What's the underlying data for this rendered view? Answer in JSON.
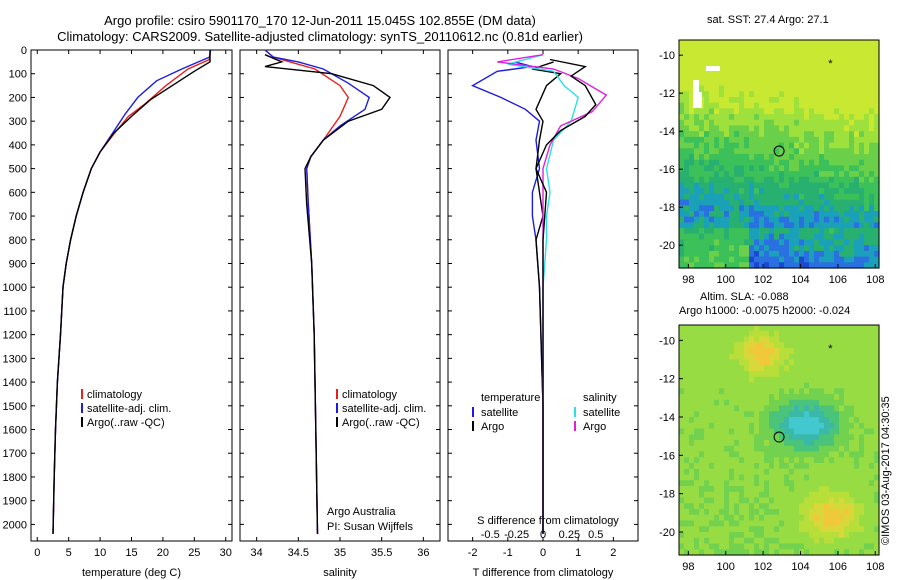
{
  "header": {
    "line1": "Argo profile: csiro 5901170_170 12-Jun-2011 15.045S 102.855E (DM data)",
    "line2": "Climatology: CARS2009. Satellite-adjusted climatology: synTS_20110612.nc (0.81d earlier)"
  },
  "stamp": "©IMOS 03-Aug-2017 04:30:35",
  "colors": {
    "climatology": "#e8201c",
    "satellite": "#1c1ce0",
    "argo": "#000000",
    "sat_salinity": "#29e0e6",
    "argo_salinity": "#e020e0"
  },
  "chart_data": [
    {
      "type": "line",
      "name": "temperature",
      "xlabel": "temperature (deg C)",
      "xlim": [
        -1,
        31
      ],
      "ylim": [
        2070,
        0
      ],
      "xticks": [
        0,
        5,
        10,
        15,
        20,
        25,
        30
      ],
      "yticks": [
        0,
        100,
        200,
        300,
        400,
        500,
        600,
        700,
        800,
        900,
        1000,
        1100,
        1200,
        1300,
        1400,
        1500,
        1600,
        1700,
        1800,
        1900,
        2000
      ],
      "legend": [
        "climatology",
        "satellite-adj. clim.",
        "Argo(..raw -QC)"
      ],
      "series": [
        {
          "name": "climatology",
          "color": "#e8201c",
          "points": [
            [
              27.6,
              0
            ],
            [
              27.4,
              40
            ],
            [
              24,
              80
            ],
            [
              20.5,
              150
            ],
            [
              17,
              230
            ],
            [
              14.5,
              280
            ],
            [
              12,
              360
            ],
            [
              10,
              430
            ],
            [
              8.6,
              500
            ],
            [
              7.3,
              600
            ],
            [
              6.2,
              700
            ],
            [
              5.3,
              800
            ],
            [
              4.6,
              900
            ],
            [
              4.1,
              1000
            ],
            [
              3.7,
              1200
            ],
            [
              3.2,
              1400
            ],
            [
              2.9,
              1600
            ],
            [
              2.7,
              1800
            ],
            [
              2.5,
              2040
            ]
          ]
        },
        {
          "name": "satellite-adj. clim.",
          "color": "#1c1ce0",
          "points": [
            [
              27.6,
              0
            ],
            [
              27.4,
              30
            ],
            [
              23,
              80
            ],
            [
              19,
              130
            ],
            [
              16,
              200
            ],
            [
              14,
              270
            ],
            [
              12,
              350
            ],
            [
              10,
              430
            ],
            [
              8.6,
              500
            ],
            [
              7.3,
              600
            ],
            [
              6.2,
              700
            ],
            [
              5.3,
              800
            ],
            [
              4.6,
              900
            ],
            [
              4.1,
              1000
            ],
            [
              3.7,
              1200
            ],
            [
              3.2,
              1400
            ],
            [
              2.9,
              1600
            ],
            [
              2.7,
              1800
            ],
            [
              2.5,
              2040
            ]
          ]
        },
        {
          "name": "Argo(..raw -QC)",
          "color": "#000000",
          "points": [
            [
              27.5,
              0
            ],
            [
              27.5,
              50
            ],
            [
              25,
              90
            ],
            [
              21.5,
              150
            ],
            [
              18,
              210
            ],
            [
              15,
              280
            ],
            [
              12.2,
              350
            ],
            [
              10,
              430
            ],
            [
              8.6,
              500
            ],
            [
              7.3,
              600
            ],
            [
              6.2,
              700
            ],
            [
              5.3,
              800
            ],
            [
              4.6,
              900
            ],
            [
              4.1,
              1000
            ],
            [
              3.7,
              1200
            ],
            [
              3.2,
              1400
            ],
            [
              2.9,
              1600
            ],
            [
              2.7,
              1800
            ],
            [
              2.5,
              2040
            ]
          ]
        }
      ]
    },
    {
      "type": "line",
      "name": "salinity",
      "xlabel": "salinity",
      "xlim": [
        33.8,
        36.2
      ],
      "ylim": [
        2070,
        0
      ],
      "xticks": [
        34,
        34.5,
        35,
        35.5,
        36
      ],
      "legend": [
        "climatology",
        "satellite-adj. clim.",
        "Argo(..raw -QC)"
      ],
      "annotation": [
        "Argo Australia",
        "PI: Susan Wijffels"
      ],
      "series": [
        {
          "name": "climatology",
          "color": "#e8201c",
          "points": [
            [
              34.1,
              0
            ],
            [
              34.2,
              30
            ],
            [
              34.4,
              50
            ],
            [
              34.7,
              80
            ],
            [
              35.0,
              150
            ],
            [
              35.1,
              200
            ],
            [
              35.0,
              280
            ],
            [
              34.8,
              380
            ],
            [
              34.65,
              450
            ],
            [
              34.6,
              500
            ],
            [
              34.62,
              650
            ],
            [
              34.66,
              900
            ],
            [
              34.69,
              1200
            ],
            [
              34.71,
              1600
            ],
            [
              34.73,
              2040
            ]
          ]
        },
        {
          "name": "satellite-adj. clim.",
          "color": "#1c1ce0",
          "points": [
            [
              34.1,
              0
            ],
            [
              34.2,
              30
            ],
            [
              34.5,
              50
            ],
            [
              34.8,
              80
            ],
            [
              35.1,
              140
            ],
            [
              35.35,
              200
            ],
            [
              35.3,
              250
            ],
            [
              35.0,
              320
            ],
            [
              34.8,
              380
            ],
            [
              34.65,
              450
            ],
            [
              34.6,
              500
            ],
            [
              34.62,
              650
            ],
            [
              34.66,
              900
            ],
            [
              34.69,
              1200
            ],
            [
              34.71,
              1600
            ],
            [
              34.73,
              2040
            ]
          ]
        },
        {
          "name": "Argo(..raw -QC)",
          "color": "#000000",
          "points": [
            [
              34.1,
              20
            ],
            [
              34.3,
              50
            ],
            [
              34.1,
              70
            ],
            [
              34.9,
              100
            ],
            [
              35.4,
              150
            ],
            [
              35.6,
              200
            ],
            [
              35.5,
              250
            ],
            [
              35.1,
              300
            ],
            [
              34.8,
              380
            ],
            [
              34.65,
              450
            ],
            [
              34.58,
              500
            ],
            [
              34.6,
              650
            ],
            [
              34.66,
              900
            ],
            [
              34.69,
              1200
            ],
            [
              34.71,
              1600
            ],
            [
              34.73,
              2040
            ]
          ]
        }
      ]
    },
    {
      "type": "line",
      "name": "difference",
      "xlabel": "T difference from climatology",
      "xlabel_top": "S difference from climatology",
      "xlim": [
        -2.7,
        2.7
      ],
      "ylim": [
        2070,
        0
      ],
      "xticks": [
        -2,
        -1,
        0,
        1,
        2
      ],
      "xticklabels_top": [
        {
          "x": -1.5,
          "label": "-0.5"
        },
        {
          "x": -0.75,
          "label": "-0.25"
        },
        {
          "x": 0,
          "label": "0"
        },
        {
          "x": 0.75,
          "label": "0.25"
        },
        {
          "x": 1.5,
          "label": "0.5"
        }
      ],
      "legend_heads": [
        "temperature",
        "salinity"
      ],
      "legend": [
        "satellite",
        "Argo",
        "satellite",
        "Argo"
      ],
      "series": [
        {
          "name": "temperature satellite",
          "color": "#1c1ce0",
          "points": [
            [
              -0.8,
              50
            ],
            [
              -0.3,
              70
            ],
            [
              -1.3,
              90
            ],
            [
              -2.0,
              150
            ],
            [
              -1.2,
              200
            ],
            [
              -0.5,
              250
            ],
            [
              -0.1,
              300
            ],
            [
              -0.2,
              380
            ],
            [
              -0.1,
              500
            ],
            [
              -0.3,
              600
            ],
            [
              -0.3,
              700
            ],
            [
              -0.2,
              800
            ],
            [
              -0.1,
              1000
            ],
            [
              0,
              1500
            ],
            [
              0,
              2040
            ]
          ]
        },
        {
          "name": "temperature Argo",
          "color": "#000000",
          "points": [
            [
              0.3,
              50
            ],
            [
              -0.3,
              80
            ],
            [
              0.5,
              100
            ],
            [
              0.1,
              150
            ],
            [
              -0.2,
              250
            ],
            [
              0,
              300
            ],
            [
              -0.1,
              380
            ],
            [
              -0.2,
              500
            ],
            [
              -0.1,
              600
            ],
            [
              0.0,
              700
            ],
            [
              -0.2,
              800
            ],
            [
              -0.1,
              1000
            ],
            [
              0,
              1500
            ],
            [
              0,
              2040
            ]
          ]
        },
        {
          "name": "salinity satellite",
          "color": "#29e0e6",
          "points": [
            [
              0,
              20
            ],
            [
              -1.0,
              60
            ],
            [
              0.3,
              90
            ],
            [
              0.6,
              150
            ],
            [
              1.0,
              200
            ],
            [
              0.8,
              300
            ],
            [
              0.3,
              380
            ],
            [
              0.1,
              500
            ],
            [
              0.2,
              600
            ],
            [
              0.1,
              700
            ],
            [
              0.1,
              800
            ],
            [
              0,
              1000
            ],
            [
              0,
              1500
            ],
            [
              0,
              2040
            ]
          ]
        },
        {
          "name": "salinity Argo",
          "color": "#e020e0",
          "points": [
            [
              0,
              20
            ],
            [
              -1.3,
              50
            ],
            [
              0.3,
              80
            ],
            [
              1.0,
              120
            ],
            [
              1.8,
              190
            ],
            [
              1.4,
              260
            ],
            [
              0.5,
              320
            ],
            [
              0.2,
              400
            ],
            [
              0.0,
              500
            ],
            [
              0.0,
              700
            ],
            [
              0,
              1000
            ],
            [
              0,
              1500
            ],
            [
              0,
              2040
            ]
          ]
        },
        {
          "name": "Argo black",
          "color": "#000000",
          "points": [
            [
              0.2,
              40
            ],
            [
              1.2,
              70
            ],
            [
              0.8,
              110
            ],
            [
              1.2,
              150
            ],
            [
              1.5,
              230
            ],
            [
              1.2,
              280
            ],
            [
              0.5,
              340
            ],
            [
              0.1,
              400
            ],
            [
              -0.2,
              500
            ],
            [
              0.1,
              600
            ],
            [
              0,
              800
            ],
            [
              0,
              1200
            ],
            [
              0,
              2040
            ]
          ]
        }
      ]
    },
    {
      "type": "heatmap",
      "name": "sst_map",
      "title": "sat. SST: 27.4  Argo: 27.1",
      "xlim": [
        97.5,
        108.2
      ],
      "ylim": [
        -21.2,
        -9.2
      ],
      "xticks": [
        98,
        100,
        102,
        104,
        106,
        108
      ],
      "yticks": [
        -10,
        -12,
        -14,
        -16,
        -18,
        -20
      ],
      "marker": {
        "x": 102.855,
        "y": -15.045
      }
    },
    {
      "type": "heatmap",
      "name": "sla_map",
      "title": [
        "Altim. SLA: -0.088",
        "Argo h1000: -0.0075  h2000: -0.024"
      ],
      "xlim": [
        97.5,
        108.2
      ],
      "ylim": [
        -21.2,
        -9.2
      ],
      "xticks": [
        98,
        100,
        102,
        104,
        106,
        108
      ],
      "yticks": [
        -10,
        -12,
        -14,
        -16,
        -18,
        -20
      ],
      "marker": {
        "x": 102.855,
        "y": -15.045
      }
    }
  ]
}
